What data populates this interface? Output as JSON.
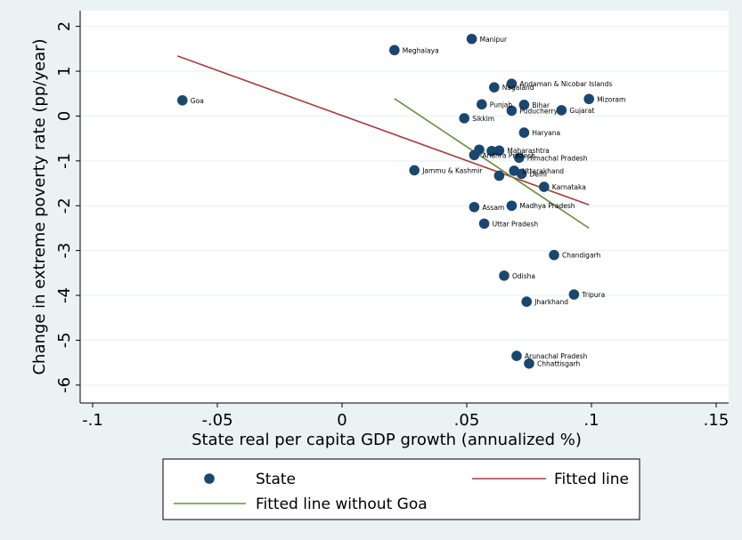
{
  "chart_data": {
    "type": "scatter",
    "xlabel": "State real per capita GDP growth (annualized %)",
    "ylabel": "Change in extreme poverty rate (pp/year)",
    "xlim": [
      -0.105,
      0.155
    ],
    "ylim": [
      -6.4,
      2.35
    ],
    "x_ticks": [
      -0.1,
      -0.05,
      0,
      0.05,
      0.1,
      0.15
    ],
    "x_tick_labels": [
      "-.1",
      "-.05",
      "0",
      ".05",
      ".1",
      ".15"
    ],
    "y_ticks": [
      -6,
      -5,
      -4,
      -3,
      -2,
      -1,
      0,
      1,
      2
    ],
    "y_tick_labels": [
      "-6",
      "-5",
      "-4",
      "-3",
      "-2",
      "-1",
      "0",
      "1",
      "2"
    ],
    "grid": "horizontal",
    "legend_placement": "bottom",
    "colors": {
      "background": "#eaf2f3",
      "plot_background": "#ffffff",
      "points": "#1a476f",
      "fitted_line": "#a63d40",
      "fitted_line_without_goa": "#6b8e3a"
    },
    "series": [
      {
        "name": "State",
        "marker": "circle",
        "points": [
          {
            "label": "Manipur",
            "x": 0.052,
            "y": 1.72
          },
          {
            "label": "Meghalaya",
            "x": 0.021,
            "y": 1.47
          },
          {
            "label": "Andaman & Nicobar Islands",
            "x": 0.068,
            "y": 0.72
          },
          {
            "label": "Nagaland",
            "x": 0.061,
            "y": 0.64
          },
          {
            "label": "Mizoram",
            "x": 0.099,
            "y": 0.38
          },
          {
            "label": "Goa",
            "x": -0.064,
            "y": 0.35
          },
          {
            "label": "Punjab",
            "x": 0.056,
            "y": 0.26
          },
          {
            "label": "Bihar",
            "x": 0.073,
            "y": 0.25
          },
          {
            "label": "Gujarat",
            "x": 0.088,
            "y": 0.13
          },
          {
            "label": "Puducherry",
            "x": 0.068,
            "y": 0.12
          },
          {
            "label": "Sikkim",
            "x": 0.049,
            "y": -0.05
          },
          {
            "label": "Haryana",
            "x": 0.073,
            "y": -0.37
          },
          {
            "label": "Maharashtra",
            "x": 0.063,
            "y": -0.77
          },
          {
            "label": "",
            "x": 0.055,
            "y": -0.75
          },
          {
            "label": "",
            "x": 0.06,
            "y": -0.78
          },
          {
            "label": "Andhra Pradesh",
            "x": 0.053,
            "y": -0.87
          },
          {
            "label": "Himachal Pradesh",
            "x": 0.071,
            "y": -0.93
          },
          {
            "label": "Jammu & Kashmir",
            "x": 0.029,
            "y": -1.21
          },
          {
            "label": "Uttarakhand",
            "x": 0.069,
            "y": -1.22
          },
          {
            "label": "Delhi",
            "x": 0.072,
            "y": -1.29
          },
          {
            "label": "",
            "x": 0.063,
            "y": -1.33
          },
          {
            "label": "Karnataka",
            "x": 0.081,
            "y": -1.58
          },
          {
            "label": "Madhya Pradesh",
            "x": 0.068,
            "y": -2.0
          },
          {
            "label": "Assam",
            "x": 0.053,
            "y": -2.03
          },
          {
            "label": "Uttar Pradesh",
            "x": 0.057,
            "y": -2.4
          },
          {
            "label": "Chandigarh",
            "x": 0.085,
            "y": -3.1
          },
          {
            "label": "Odisha",
            "x": 0.065,
            "y": -3.56
          },
          {
            "label": "Tripura",
            "x": 0.093,
            "y": -3.98
          },
          {
            "label": "Jharkhand",
            "x": 0.074,
            "y": -4.14
          },
          {
            "label": "Arunachal Pradesh",
            "x": 0.07,
            "y": -5.35
          },
          {
            "label": "Chhattisgarh",
            "x": 0.075,
            "y": -5.52
          }
        ]
      },
      {
        "name": "Fitted line",
        "type": "line",
        "points": [
          [
            -0.066,
            1.34
          ],
          [
            0.099,
            -1.98
          ]
        ]
      },
      {
        "name": "Fitted line without Goa",
        "type": "line",
        "points": [
          [
            0.021,
            0.39
          ],
          [
            0.099,
            -2.5
          ]
        ]
      }
    ]
  }
}
